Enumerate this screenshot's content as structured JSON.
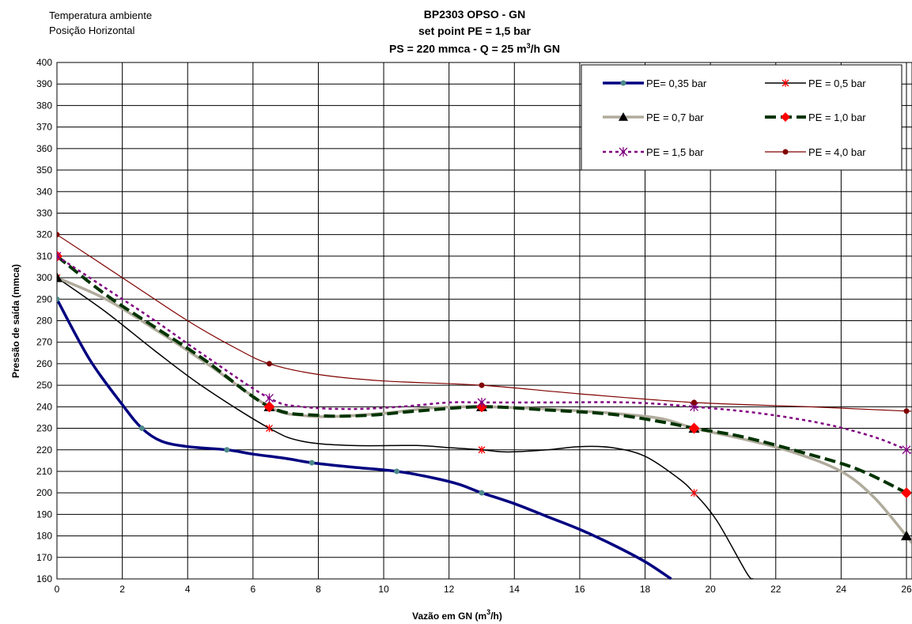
{
  "header": {
    "note_line1": "Temperatura ambiente",
    "note_line2": "Posição Horizontal",
    "title_line1": "BP2303 OPSO - GN",
    "title_line2": "set point PE = 1,5 bar",
    "title_line3_a": "PS = 220 mmca - Q = 25 m",
    "title_line3_sup": "3",
    "title_line3_b": "/h GN"
  },
  "chart_data": {
    "type": "line",
    "xlabel": "Vazão em GN (m3/h)",
    "ylabel": "Pressão de saída (mmca)",
    "xlim": [
      0,
      26
    ],
    "ylim": [
      160,
      400
    ],
    "x_ticks": [
      0,
      2,
      4,
      6,
      8,
      10,
      12,
      14,
      16,
      18,
      20,
      22,
      24,
      26
    ],
    "y_ticks": [
      160,
      170,
      180,
      190,
      200,
      210,
      220,
      230,
      240,
      250,
      260,
      270,
      280,
      290,
      300,
      310,
      320,
      330,
      340,
      350,
      360,
      370,
      380,
      390,
      400
    ],
    "grid": true,
    "legend_position": "top-right",
    "series": [
      {
        "name": "PE= 0,35 bar",
        "color": "#000080",
        "line_width": 3.5,
        "dash": "",
        "marker": "circle",
        "marker_color": "#4e8a8a",
        "marker_size": 3,
        "markers": [
          [
            0,
            290
          ],
          [
            2.6,
            230
          ],
          [
            5.2,
            220
          ],
          [
            7.8,
            214
          ],
          [
            10.4,
            210
          ],
          [
            13,
            200
          ]
        ],
        "curve": [
          [
            0,
            290
          ],
          [
            1,
            262
          ],
          [
            2,
            241
          ],
          [
            2.6,
            230
          ],
          [
            3.2,
            224
          ],
          [
            4,
            221.5
          ],
          [
            5.2,
            220
          ],
          [
            6,
            218
          ],
          [
            7,
            216
          ],
          [
            7.8,
            214
          ],
          [
            9,
            212
          ],
          [
            10.4,
            210
          ],
          [
            11.5,
            207
          ],
          [
            12.3,
            204
          ],
          [
            13,
            200
          ],
          [
            14,
            195
          ],
          [
            15,
            189
          ],
          [
            16,
            183
          ],
          [
            17,
            176
          ],
          [
            18,
            168
          ],
          [
            18.8,
            160
          ]
        ]
      },
      {
        "name": "PE = 0,5 bar",
        "color": "#000000",
        "line_width": 1.5,
        "dash": "",
        "marker": "asterisk",
        "marker_color": "#ff0000",
        "marker_size": 4,
        "markers": [
          [
            0,
            300
          ],
          [
            6.5,
            230
          ],
          [
            13,
            220
          ],
          [
            19.5,
            200
          ]
        ],
        "curve": [
          [
            0,
            300
          ],
          [
            1.5,
            284
          ],
          [
            3,
            266
          ],
          [
            4.5,
            249
          ],
          [
            6.5,
            230
          ],
          [
            7.5,
            224
          ],
          [
            9,
            222
          ],
          [
            11,
            222
          ],
          [
            12,
            221
          ],
          [
            13,
            220
          ],
          [
            13.8,
            219
          ],
          [
            15,
            220
          ],
          [
            16,
            221.5
          ],
          [
            17,
            221
          ],
          [
            18,
            217
          ],
          [
            19,
            207
          ],
          [
            19.5,
            200
          ],
          [
            20.2,
            187
          ],
          [
            21.1,
            163
          ],
          [
            21.3,
            160
          ]
        ]
      },
      {
        "name": "PE = 0,7 bar",
        "color": "#b0ab9c",
        "line_width": 3.5,
        "dash": "",
        "marker": "triangle",
        "marker_color": "#000000",
        "marker_size": 7,
        "markers": [
          [
            0,
            300
          ],
          [
            6.5,
            240
          ],
          [
            13,
            240
          ],
          [
            19.5,
            230
          ],
          [
            26,
            180
          ]
        ],
        "curve": [
          [
            0,
            300
          ],
          [
            1.5,
            290
          ],
          [
            3,
            276
          ],
          [
            4.5,
            261
          ],
          [
            6.5,
            240
          ],
          [
            7.5,
            236
          ],
          [
            8.5,
            235.5
          ],
          [
            10,
            237
          ],
          [
            11.5,
            239.5
          ],
          [
            13,
            240
          ],
          [
            15,
            239
          ],
          [
            17,
            237
          ],
          [
            18.5,
            234.5
          ],
          [
            19.5,
            230
          ],
          [
            21,
            225
          ],
          [
            22.5,
            219
          ],
          [
            24,
            210
          ],
          [
            25,
            198
          ],
          [
            26,
            180
          ],
          [
            26.2,
            176
          ]
        ]
      },
      {
        "name": "PE = 1,0 bar",
        "color": "#003300",
        "line_width": 4,
        "dash": "14,6",
        "marker": "diamond",
        "marker_color": "#ff0000",
        "marker_size": 7,
        "markers": [
          [
            0,
            310
          ],
          [
            6.5,
            240
          ],
          [
            13,
            240
          ],
          [
            19.5,
            230
          ],
          [
            26,
            200
          ]
        ],
        "curve": [
          [
            0,
            310
          ],
          [
            1.5,
            292
          ],
          [
            3,
            277
          ],
          [
            4.5,
            262
          ],
          [
            6.5,
            240
          ],
          [
            8,
            236
          ],
          [
            9.5,
            236
          ],
          [
            11,
            238
          ],
          [
            13,
            240
          ],
          [
            15,
            238.5
          ],
          [
            17,
            236.5
          ],
          [
            18.5,
            233
          ],
          [
            19.5,
            230
          ],
          [
            21,
            226
          ],
          [
            23,
            218
          ],
          [
            24.5,
            211
          ],
          [
            26,
            200
          ],
          [
            26.2,
            198
          ]
        ]
      },
      {
        "name": "PE = 1,5 bar",
        "color": "#800080",
        "line_width": 2.5,
        "dash": "4,4",
        "marker": "asterisk",
        "marker_color": "#800080",
        "marker_size": 5,
        "markers": [
          [
            0,
            310
          ],
          [
            6.5,
            244
          ],
          [
            13,
            242
          ],
          [
            19.5,
            240
          ],
          [
            26,
            220
          ]
        ],
        "curve": [
          [
            0,
            310
          ],
          [
            1.5,
            295
          ],
          [
            3,
            280
          ],
          [
            4.5,
            264
          ],
          [
            6.5,
            244
          ],
          [
            7.5,
            240
          ],
          [
            9,
            239
          ],
          [
            10.5,
            240
          ],
          [
            12,
            242
          ],
          [
            13,
            242
          ],
          [
            15,
            242
          ],
          [
            17.5,
            242
          ],
          [
            19.5,
            240
          ],
          [
            21.5,
            237
          ],
          [
            23.5,
            232
          ],
          [
            25,
            226
          ],
          [
            26,
            220
          ],
          [
            26.2,
            218
          ]
        ]
      },
      {
        "name": "PE = 4,0 bar",
        "color": "#800000",
        "line_width": 1.2,
        "dash": "",
        "marker": "circle",
        "marker_color": "#800000",
        "marker_size": 3,
        "markers": [
          [
            0,
            320
          ],
          [
            6.5,
            260
          ],
          [
            13,
            250
          ],
          [
            19.5,
            242
          ],
          [
            26,
            238
          ]
        ],
        "curve": [
          [
            0,
            320
          ],
          [
            2,
            300
          ],
          [
            4,
            280
          ],
          [
            5.5,
            267
          ],
          [
            6.5,
            260
          ],
          [
            8,
            255
          ],
          [
            10,
            252
          ],
          [
            13,
            250
          ],
          [
            16,
            246
          ],
          [
            19.5,
            242
          ],
          [
            23,
            240
          ],
          [
            26,
            238
          ],
          [
            26.2,
            238
          ]
        ]
      }
    ]
  }
}
